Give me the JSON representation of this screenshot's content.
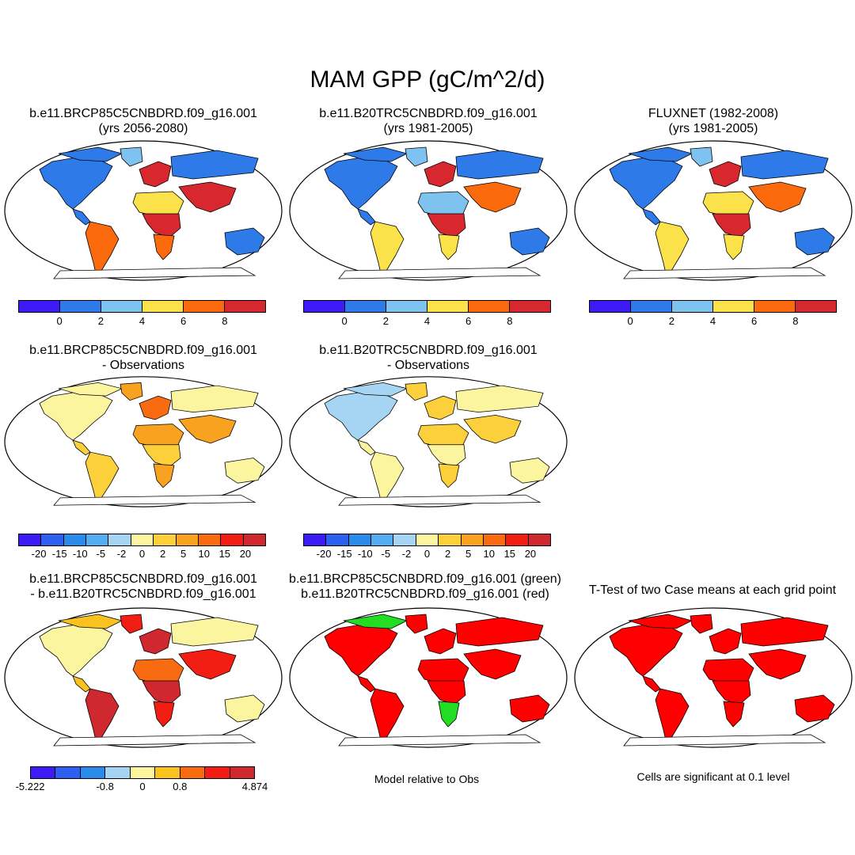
{
  "title": "MAM GPP (gC/m^2/d)",
  "colors": {
    "abs": [
      "#3d1bf5",
      "#2d7ae8",
      "#7ec3ef",
      "#fbe14a",
      "#fb6a0d",
      "#d7282f"
    ],
    "diff": [
      "#3d1bf5",
      "#2d5ff0",
      "#2a8bea",
      "#53adf0",
      "#a6d5f3",
      "#fbf5a0",
      "#fbd03b",
      "#f9a21f",
      "#f96b10",
      "#f21e14",
      "#d0282f"
    ],
    "case": [
      "#3d1bf5",
      "#2d5ff0",
      "#2a8bea",
      "#a6d5f3",
      "#fbf5a0",
      "#f9c21f",
      "#f96b10",
      "#f21e14",
      "#d0282f"
    ],
    "green": "#22dd22",
    "red": "#ff0000",
    "land_outline": "#000000"
  },
  "panels": [
    {
      "line1": "b.e11.BRCP85C5CNBDRD.f09_g16.001",
      "line2": "(yrs 2056-2080)",
      "palette": "abs",
      "values": [
        1,
        1,
        2,
        1,
        4,
        5,
        3,
        5,
        4,
        1,
        5,
        1
      ]
    },
    {
      "line1": "b.e11.B20TRC5CNBDRD.f09_g16.001",
      "line2": "(yrs 1981-2005)",
      "palette": "abs",
      "values": [
        1,
        1,
        2,
        1,
        3,
        5,
        2,
        5,
        3,
        1,
        4,
        1
      ]
    },
    {
      "line1": "FLUXNET (1982-2008)",
      "line2": "(yrs 1981-2005)",
      "palette": "abs",
      "values": [
        1,
        1,
        2,
        1,
        3,
        5,
        3,
        5,
        3,
        1,
        4,
        1
      ]
    },
    {
      "line1": "b.e11.BRCP85C5CNBDRD.f09_g16.001",
      "line2": "- Observations",
      "palette": "diff",
      "values": [
        5,
        5,
        7,
        6,
        6,
        8,
        7,
        6,
        7,
        5,
        7,
        5
      ]
    },
    {
      "line1": "b.e11.B20TRC5CNBDRD.f09_g16.001",
      "line2": "- Observations",
      "palette": "diff",
      "values": [
        4,
        4,
        6,
        5,
        5,
        6,
        6,
        5,
        6,
        5,
        6,
        5
      ]
    },
    {
      "line1": "b.e11.BRCP85C5CNBDRD.f09_g16.001",
      "line2": "- b.e11.B20TRC5CNBDRD.f09_g16.001",
      "palette": "case",
      "values": [
        4,
        5,
        7,
        5,
        8,
        8,
        6,
        8,
        7,
        4,
        7,
        4
      ]
    },
    {
      "line1": "b.e11.BRCP85C5CNBDRD.f09_g16.001 (green)",
      "line2": "b.e11.B20TRC5CNBDRD.f09_g16.001 (red)",
      "palette": "compare",
      "values": [
        0,
        1,
        0,
        0,
        0,
        0,
        0,
        0,
        1,
        0,
        0,
        0
      ]
    },
    {
      "line1": "T-Test of two Case means at each grid point",
      "line2": "",
      "palette": "ttest",
      "values": [
        1,
        1,
        1,
        1,
        1,
        1,
        1,
        1,
        1,
        1,
        1,
        1
      ]
    }
  ],
  "colorbars": {
    "abs_ticks": [
      "0",
      "2",
      "4",
      "6",
      "8"
    ],
    "diff_ticks": [
      "-20",
      "-15",
      "-10",
      "-5",
      "-2",
      "0",
      "2",
      "5",
      "10",
      "15",
      "20"
    ],
    "case_ticks": [
      "-5.222",
      "-0.8",
      "0",
      "0.8",
      "4.874"
    ]
  },
  "notes": {
    "model_relative": "Model relative to Obs",
    "significance": "Cells are significant at 0.1 level"
  }
}
